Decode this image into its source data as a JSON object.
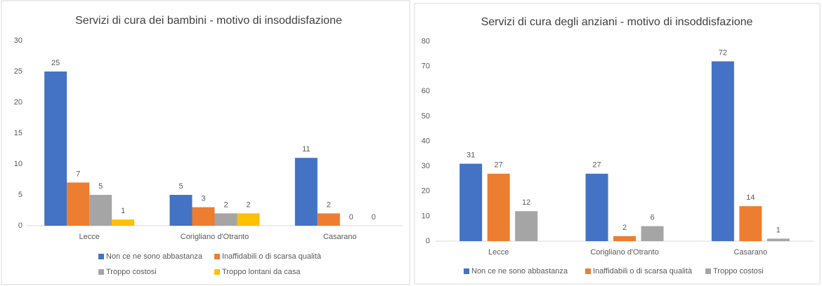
{
  "chart_data": [
    {
      "type": "bar",
      "title": "Servizi di cura dei bambini - motivo di insoddisfazione",
      "categories": [
        "Lecce",
        "Corigliano d'Otranto",
        "Casarano"
      ],
      "series": [
        {
          "name": "Non ce ne sono abbastanza",
          "color": "#4472c4",
          "values": [
            25,
            5,
            11
          ]
        },
        {
          "name": "Inaffidabili o di scarsa qualità",
          "color": "#ed7d31",
          "values": [
            7,
            3,
            2
          ]
        },
        {
          "name": "Troppo costosi",
          "color": "#a5a5a5",
          "values": [
            5,
            2,
            0
          ]
        },
        {
          "name": "Troppo lontani da casa",
          "color": "#ffc000",
          "values": [
            1,
            2,
            0
          ]
        }
      ],
      "ylim": [
        0,
        30
      ],
      "yticks": [
        0,
        5,
        10,
        15,
        20,
        25,
        30
      ],
      "grid": false,
      "legend": "bottom"
    },
    {
      "type": "bar",
      "title": "Servizi di cura degli anziani - motivo di insoddisfazione",
      "categories": [
        "Lecce",
        "Corigliano d'Otranto",
        "Casarano"
      ],
      "series": [
        {
          "name": "Non ce ne sono abbastanza",
          "color": "#4472c4",
          "values": [
            31,
            27,
            72
          ]
        },
        {
          "name": "Inaffidabili o di scarsa qualità",
          "color": "#ed7d31",
          "values": [
            27,
            2,
            14
          ]
        },
        {
          "name": "Troppo costosi",
          "color": "#a5a5a5",
          "values": [
            12,
            6,
            1
          ]
        }
      ],
      "ylim": [
        0,
        80
      ],
      "yticks": [
        0,
        10,
        20,
        30,
        40,
        50,
        60,
        70,
        80
      ],
      "grid": false,
      "legend": "bottom"
    }
  ]
}
